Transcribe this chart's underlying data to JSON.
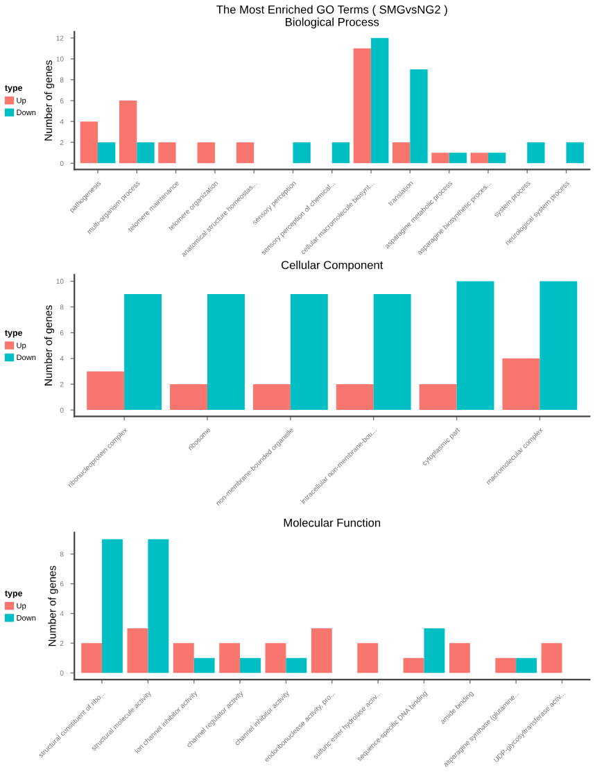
{
  "chart_data": [
    {
      "type": "bar",
      "title": "The Most Enriched GO Terms ( SMGvsNG2 )",
      "subtitle": "Biological Process",
      "ylabel": "Number of genes",
      "legend_title": "type",
      "legend": "left",
      "grid": false,
      "categories": [
        "pathogenesis",
        "multi-organism process",
        "telomere maintenance",
        "telomere organization",
        "anatomical structure homeostas...",
        "sensory perception",
        "sensory perception of chemical...",
        "cellular macromolecule biosynt...",
        "translation",
        "asparagine metabolic process",
        "asparagine biosynthetic proces...",
        "system process",
        "neurological system process"
      ],
      "series": [
        {
          "name": "Up",
          "color": "#f8766d",
          "values": [
            4,
            6,
            2,
            2,
            2,
            null,
            null,
            11,
            2,
            1,
            1,
            null,
            null
          ]
        },
        {
          "name": "Down",
          "color": "#00bfc4",
          "values": [
            2,
            2,
            null,
            null,
            null,
            2,
            2,
            12,
            9,
            1,
            1,
            2,
            2
          ]
        }
      ],
      "ylim": [
        -0.6,
        12.6
      ],
      "yticks": [
        0,
        2,
        4,
        6,
        8,
        10,
        12
      ]
    },
    {
      "type": "bar",
      "title": "Cellular Component",
      "ylabel": "Number of genes",
      "legend_title": "type",
      "legend": "left",
      "grid": false,
      "categories": [
        "ribonucleoprotein complex",
        "ribosome",
        "non-membrane-bounded organelle",
        "intracellular non-membrane-bou...",
        "cytoplasmic part",
        "macromolecular complex"
      ],
      "series": [
        {
          "name": "Up",
          "color": "#f8766d",
          "values": [
            3,
            2,
            2,
            2,
            2,
            4
          ]
        },
        {
          "name": "Down",
          "color": "#00bfc4",
          "values": [
            9,
            9,
            9,
            9,
            10,
            10
          ]
        }
      ],
      "ylim": [
        -0.5,
        10.5
      ],
      "yticks": [
        0,
        2,
        4,
        6,
        8,
        10
      ]
    },
    {
      "type": "bar",
      "title": "Molecular Function",
      "ylabel": "Number of genes",
      "legend_title": "type",
      "legend": "left",
      "grid": false,
      "categories": [
        "structural constituent of ribo...",
        "structural molecule activity",
        "ion channel inhibitor activity",
        "channel regulator activity",
        "channel inhibitor activity",
        "endoribonuclease activity, pro...",
        "sulfuric ester hydrolase activ...",
        "sequence-specific DNA binding",
        "amide binding",
        "asparagine synthase (glutamine...",
        "UDP-glycosyltransferase activ..."
      ],
      "series": [
        {
          "name": "Up",
          "color": "#f8766d",
          "values": [
            2,
            3,
            2,
            2,
            2,
            3,
            2,
            1,
            2,
            1,
            2
          ]
        },
        {
          "name": "Down",
          "color": "#00bfc4",
          "values": [
            9,
            9,
            1,
            1,
            1,
            null,
            null,
            3,
            null,
            1,
            null
          ]
        }
      ],
      "ylim": [
        -0.45,
        9.45
      ],
      "yticks": [
        0,
        2,
        4,
        6,
        8
      ]
    }
  ]
}
